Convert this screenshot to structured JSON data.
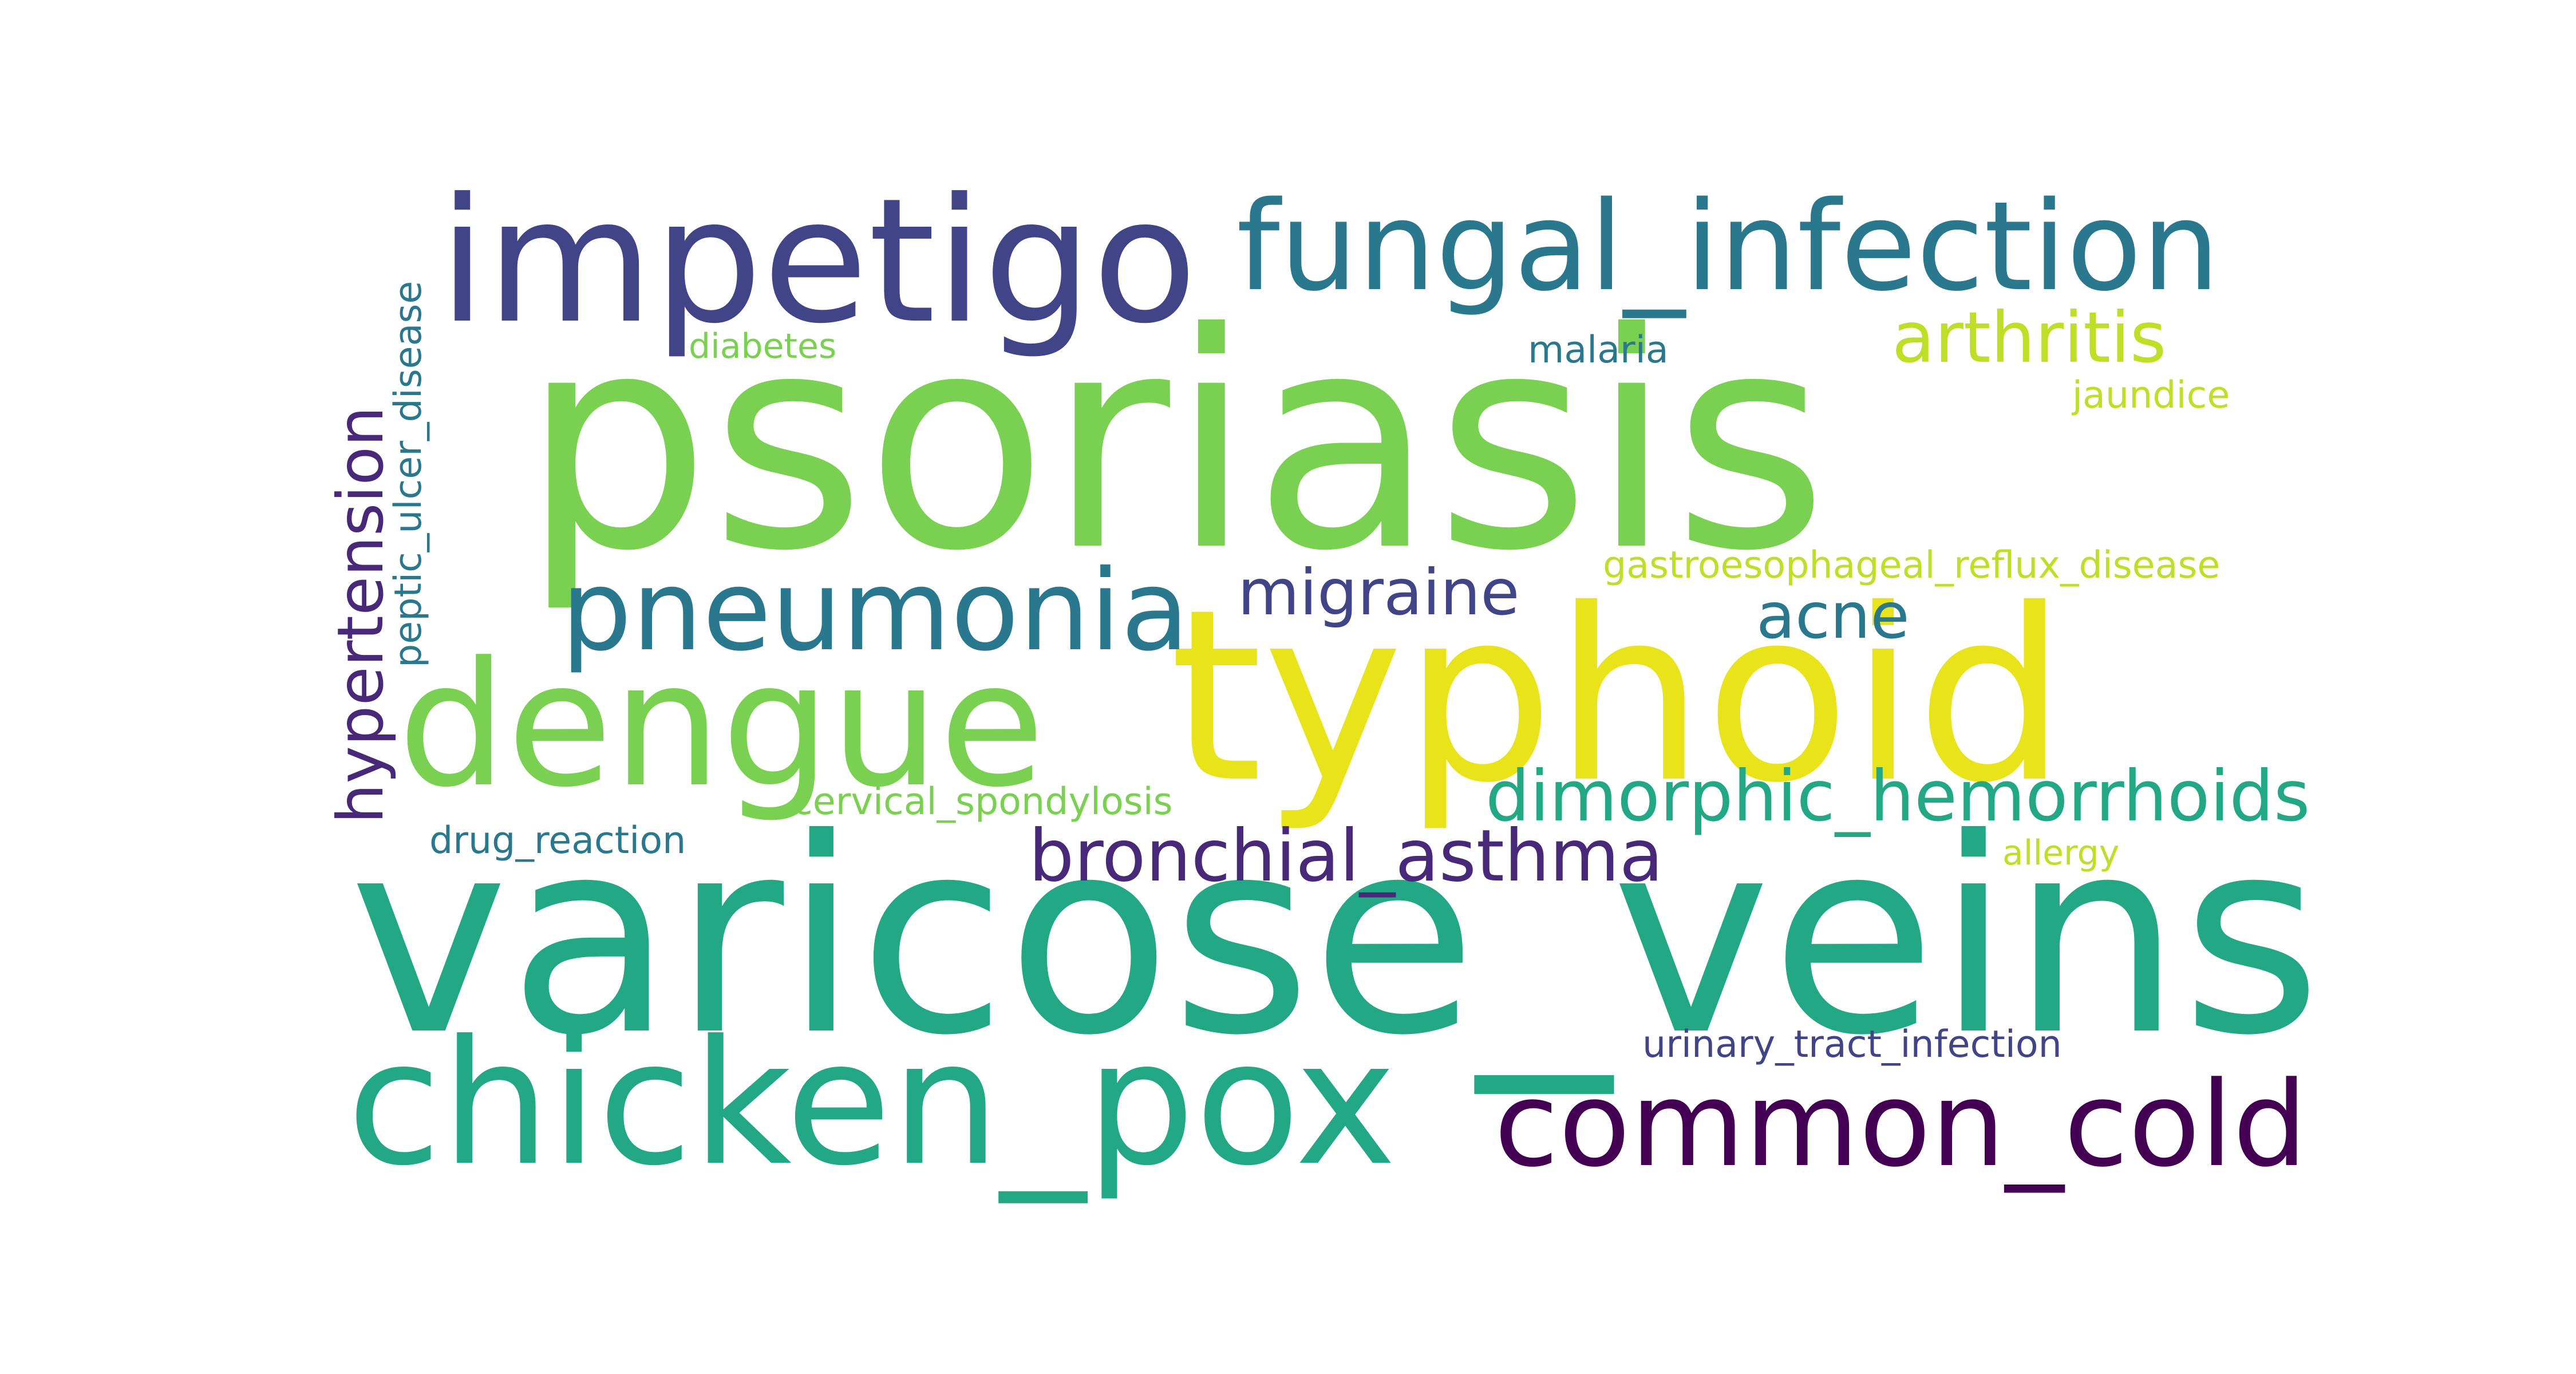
{
  "wordcloud": {
    "words": [
      {
        "text": "psoriasis",
        "color": "#7ad151"
      },
      {
        "text": "varicose_veins",
        "color": "#22a884"
      },
      {
        "text": "typhoid",
        "color": "#e8e419"
      },
      {
        "text": "impetigo",
        "color": "#414487"
      },
      {
        "text": "chicken_pox",
        "color": "#22a884"
      },
      {
        "text": "fungal_infection",
        "color": "#2a788e"
      },
      {
        "text": "dengue",
        "color": "#7ad151"
      },
      {
        "text": "common_cold",
        "color": "#440154"
      },
      {
        "text": "pneumonia",
        "color": "#2a788e"
      },
      {
        "text": "dimorphic_hemorrhoids",
        "color": "#22a884"
      },
      {
        "text": "bronchial_asthma",
        "color": "#482878"
      },
      {
        "text": "arthritis",
        "color": "#bddf26"
      },
      {
        "text": "migraine",
        "color": "#414487"
      },
      {
        "text": "hypertension",
        "color": "#482878"
      },
      {
        "text": "acne",
        "color": "#2a788e"
      },
      {
        "text": "peptic_ulcer_disease",
        "color": "#2a788e"
      },
      {
        "text": "gastroesophageal_reflux_disease",
        "color": "#bddf26"
      },
      {
        "text": "cervical_spondylosis",
        "color": "#7ad151"
      },
      {
        "text": "urinary_tract_infection",
        "color": "#414487"
      },
      {
        "text": "jaundice",
        "color": "#bddf26"
      },
      {
        "text": "malaria",
        "color": "#2a788e"
      },
      {
        "text": "drug_reaction",
        "color": "#2a788e"
      },
      {
        "text": "diabetes",
        "color": "#7ad151"
      },
      {
        "text": "allergy",
        "color": "#bddf26"
      }
    ]
  }
}
